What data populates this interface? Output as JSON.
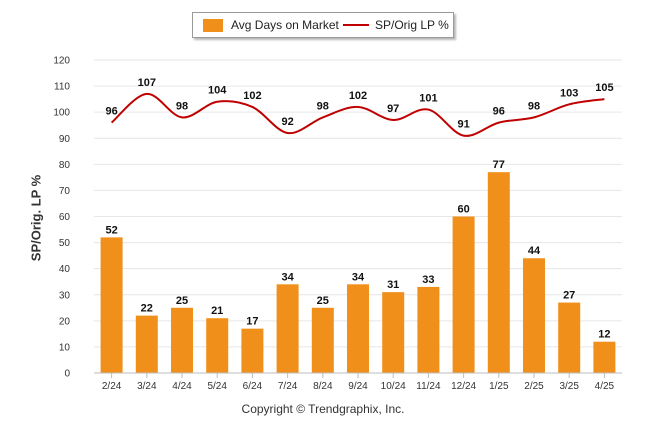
{
  "chart_data": {
    "type": "bar",
    "categories": [
      "2/24",
      "3/24",
      "4/24",
      "5/24",
      "6/24",
      "7/24",
      "8/24",
      "9/24",
      "10/24",
      "11/24",
      "12/24",
      "1/25",
      "2/25",
      "3/25",
      "4/25"
    ],
    "series": [
      {
        "name": "Avg Days on Market",
        "type": "bar",
        "values": [
          52,
          22,
          25,
          21,
          17,
          34,
          25,
          34,
          31,
          33,
          60,
          77,
          44,
          27,
          12
        ],
        "color": "#f0901a"
      },
      {
        "name": "SP/Orig LP %",
        "type": "line",
        "values": [
          96,
          107,
          98,
          104,
          102,
          92,
          98,
          102,
          97,
          101,
          91,
          96,
          98,
          103,
          105
        ],
        "color": "#c00000"
      }
    ],
    "ylabel": "SP/Orig. LP %",
    "ylim": [
      0,
      120
    ],
    "yticks": [
      0,
      10,
      20,
      30,
      40,
      50,
      60,
      70,
      80,
      90,
      100,
      110,
      120
    ],
    "grid": true,
    "legend": "top-center"
  },
  "footer": "Copyright © Trendgraphix, Inc."
}
